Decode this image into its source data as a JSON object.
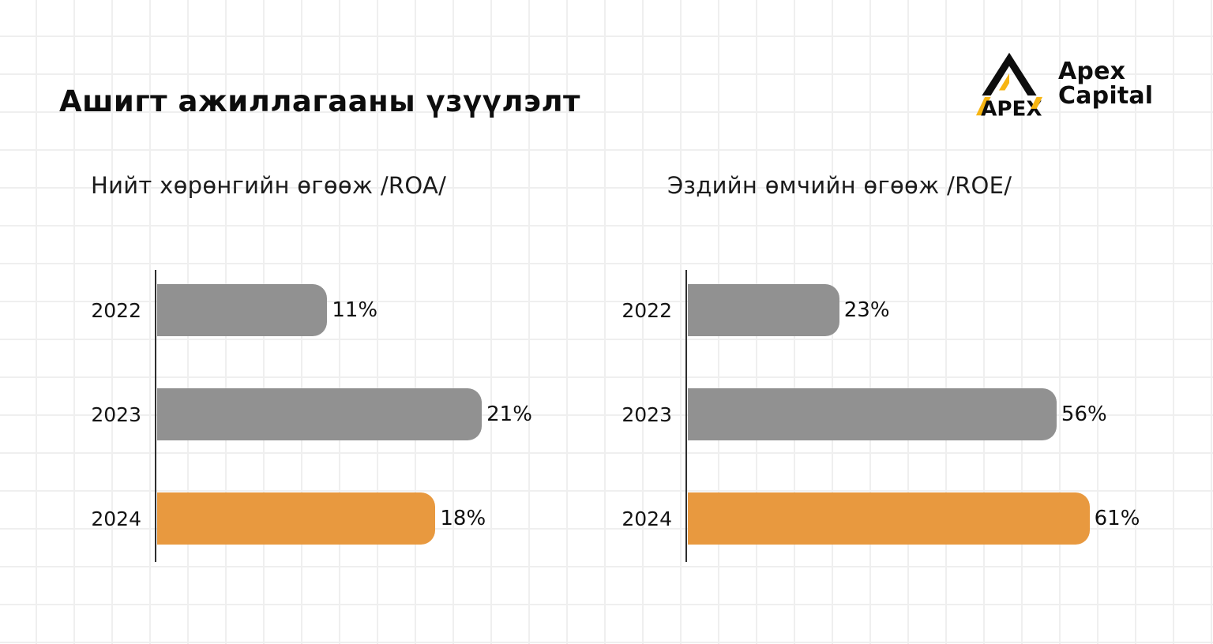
{
  "page": {
    "title": "Ашигт ажиллагааны үзүүлэлт"
  },
  "logo": {
    "mark_text": "APEX",
    "brand_line1": "Apex",
    "brand_line2": "Capital",
    "accent_color": "#F7B512",
    "ink_color": "#0d0d0d"
  },
  "chart_data": [
    {
      "type": "bar",
      "orientation": "horizontal",
      "title": "Нийт хөрөнгийн өгөөж /ROA/",
      "categories": [
        "2022",
        "2023",
        "2024"
      ],
      "values": [
        11,
        21,
        18
      ],
      "labels": [
        "11%",
        "21%",
        "18%"
      ],
      "bar_colors": [
        "#919191",
        "#919191",
        "#E8993F"
      ],
      "xlim": [
        0,
        26
      ],
      "grid": false,
      "legend": "none"
    },
    {
      "type": "bar",
      "orientation": "horizontal",
      "title": "Эздийн өмчийн өгөөж /ROE/",
      "categories": [
        "2022",
        "2023",
        "2024"
      ],
      "values": [
        23,
        56,
        61
      ],
      "labels": [
        "23%",
        "56%",
        "61%"
      ],
      "bar_colors": [
        "#919191",
        "#919191",
        "#E8993F"
      ],
      "xlim": [
        0,
        71
      ],
      "grid": false,
      "legend": "none"
    }
  ]
}
